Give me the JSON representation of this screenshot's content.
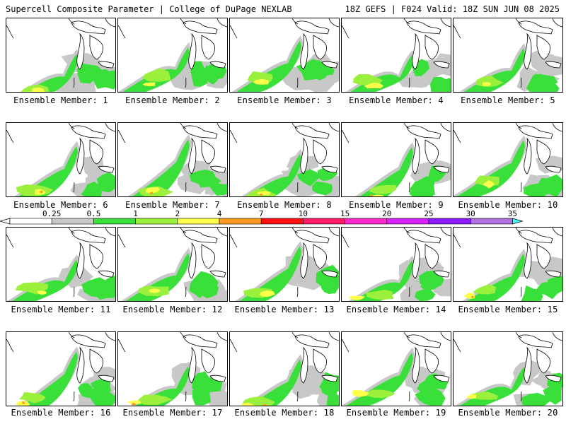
{
  "header": {
    "left": "Supercell Composite Parameter | College of DuPage NEXLAB",
    "right": "18Z GEFS | F024 Valid: 18Z SUN JUN 08 2025"
  },
  "panels": [
    {
      "label": "Ensemble Member: 1"
    },
    {
      "label": "Ensemble Member: 2"
    },
    {
      "label": "Ensemble Member: 3"
    },
    {
      "label": "Ensemble Member: 4"
    },
    {
      "label": "Ensemble Member: 5"
    },
    {
      "label": "Ensemble Member: 6"
    },
    {
      "label": "Ensemble Member: 7"
    },
    {
      "label": "Ensemble Member: 8"
    },
    {
      "label": "Ensemble Member: 9"
    },
    {
      "label": "Ensemble Member: 10"
    },
    {
      "label": "Ensemble Member: 11"
    },
    {
      "label": "Ensemble Member: 12"
    },
    {
      "label": "Ensemble Member: 13"
    },
    {
      "label": "Ensemble Member: 14"
    },
    {
      "label": "Ensemble Member: 15"
    },
    {
      "label": "Ensemble Member: 16"
    },
    {
      "label": "Ensemble Member: 17"
    },
    {
      "label": "Ensemble Member: 18"
    },
    {
      "label": "Ensemble Member: 19"
    },
    {
      "label": "Ensemble Member: 20"
    }
  ],
  "colorbar": {
    "labels": [
      "0.25",
      "0.5",
      "1",
      "2",
      "4",
      "7",
      "10",
      "15",
      "20",
      "25",
      "30",
      "35"
    ],
    "colors": [
      "#c8c8c8",
      "#3ae03a",
      "#9af03a",
      "#ffff4a",
      "#ff9a20",
      "#ff1010",
      "#ff1a6a",
      "#ff28c8",
      "#d820ff",
      "#8a1aff",
      "#b070e0",
      "#40ffff"
    ]
  }
}
